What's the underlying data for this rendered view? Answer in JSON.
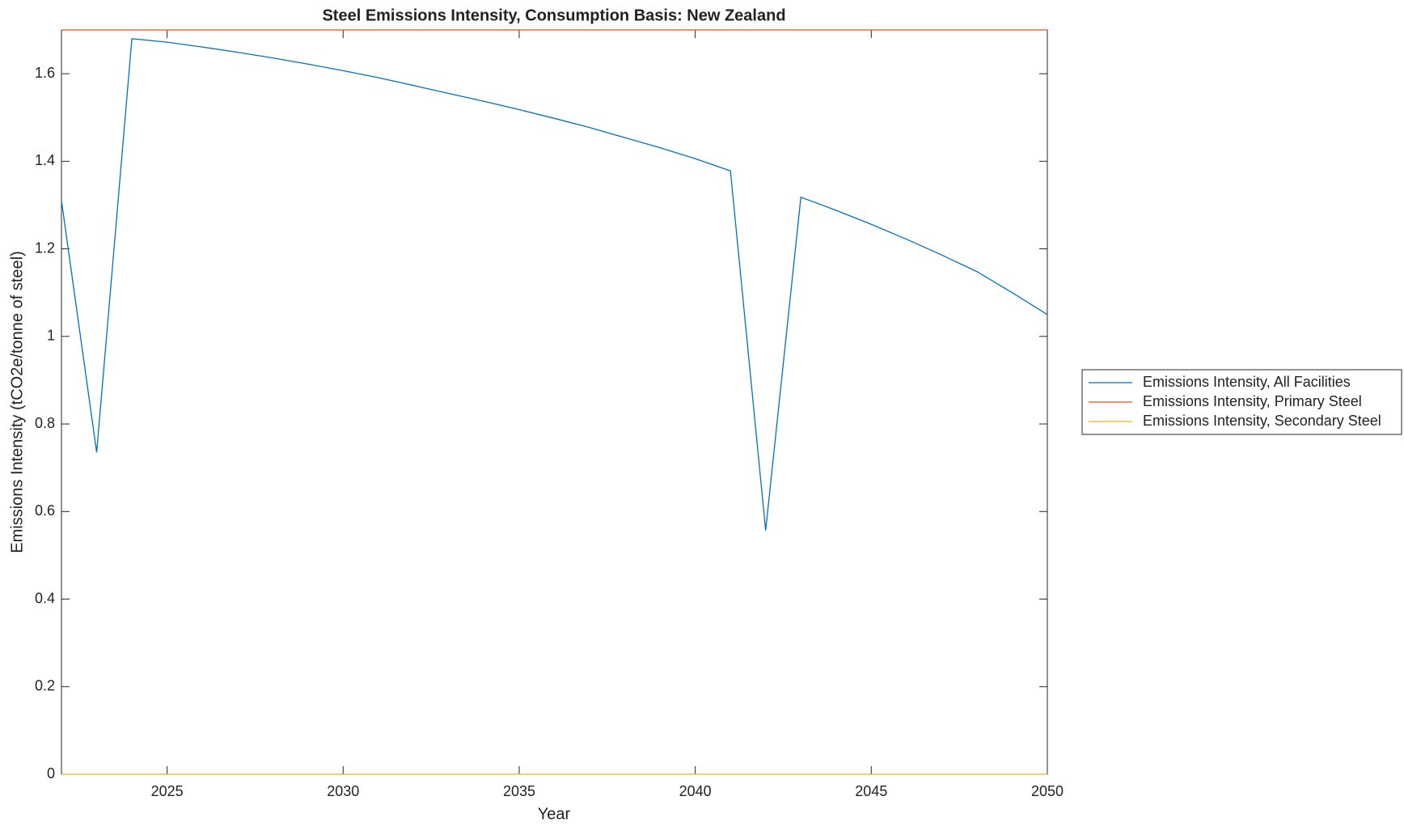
{
  "chart_data": {
    "type": "line",
    "title": "Steel Emissions Intensity, Consumption Basis: New Zealand",
    "xlabel": "Year",
    "ylabel": "Emissions Intensity (tCO2e/tonne of steel)",
    "x": [
      2022,
      2023,
      2024,
      2025,
      2026,
      2027,
      2028,
      2029,
      2030,
      2031,
      2032,
      2033,
      2034,
      2035,
      2036,
      2037,
      2038,
      2039,
      2040,
      2041,
      2042,
      2043,
      2044,
      2045,
      2046,
      2047,
      2048,
      2049,
      2050
    ],
    "series": [
      {
        "name": "Emissions Intensity, All Facilities",
        "color": "#0072bd",
        "values": [
          1.31,
          0.735,
          1.68,
          1.672,
          1.661,
          1.649,
          1.636,
          1.622,
          1.607,
          1.591,
          1.573,
          1.555,
          1.537,
          1.518,
          1.498,
          1.477,
          1.454,
          1.431,
          1.406,
          1.378,
          0.557,
          1.318,
          1.288,
          1.256,
          1.222,
          1.186,
          1.148,
          1.1,
          1.05
        ]
      },
      {
        "name": "Emissions Intensity, Primary Steel",
        "color": "#d95319",
        "values": [
          1.7,
          1.7,
          1.7,
          1.7,
          1.7,
          1.7,
          1.7,
          1.7,
          1.7,
          1.7,
          1.7,
          1.7,
          1.7,
          1.7,
          1.7,
          1.7,
          1.7,
          1.7,
          1.7,
          1.7,
          1.7,
          1.7,
          1.7,
          1.7,
          1.7,
          1.7,
          1.7,
          1.7,
          1.7
        ]
      },
      {
        "name": "Emissions Intensity, Secondary Steel",
        "color": "#edb120",
        "values": [
          0,
          0,
          0,
          0,
          0,
          0,
          0,
          0,
          0,
          0,
          0,
          0,
          0,
          0,
          0,
          0,
          0,
          0,
          0,
          0,
          0,
          0,
          0,
          0,
          0,
          0,
          0,
          0,
          0
        ]
      }
    ],
    "xlim": [
      2022,
      2050
    ],
    "xticks": [
      2025,
      2030,
      2035,
      2040,
      2045,
      2050
    ],
    "ylim": [
      0,
      1.7
    ],
    "yticks": [
      0,
      0.2,
      0.4,
      0.6,
      0.8,
      1,
      1.2,
      1.4,
      1.6
    ],
    "grid": false,
    "legend": "east outside"
  }
}
